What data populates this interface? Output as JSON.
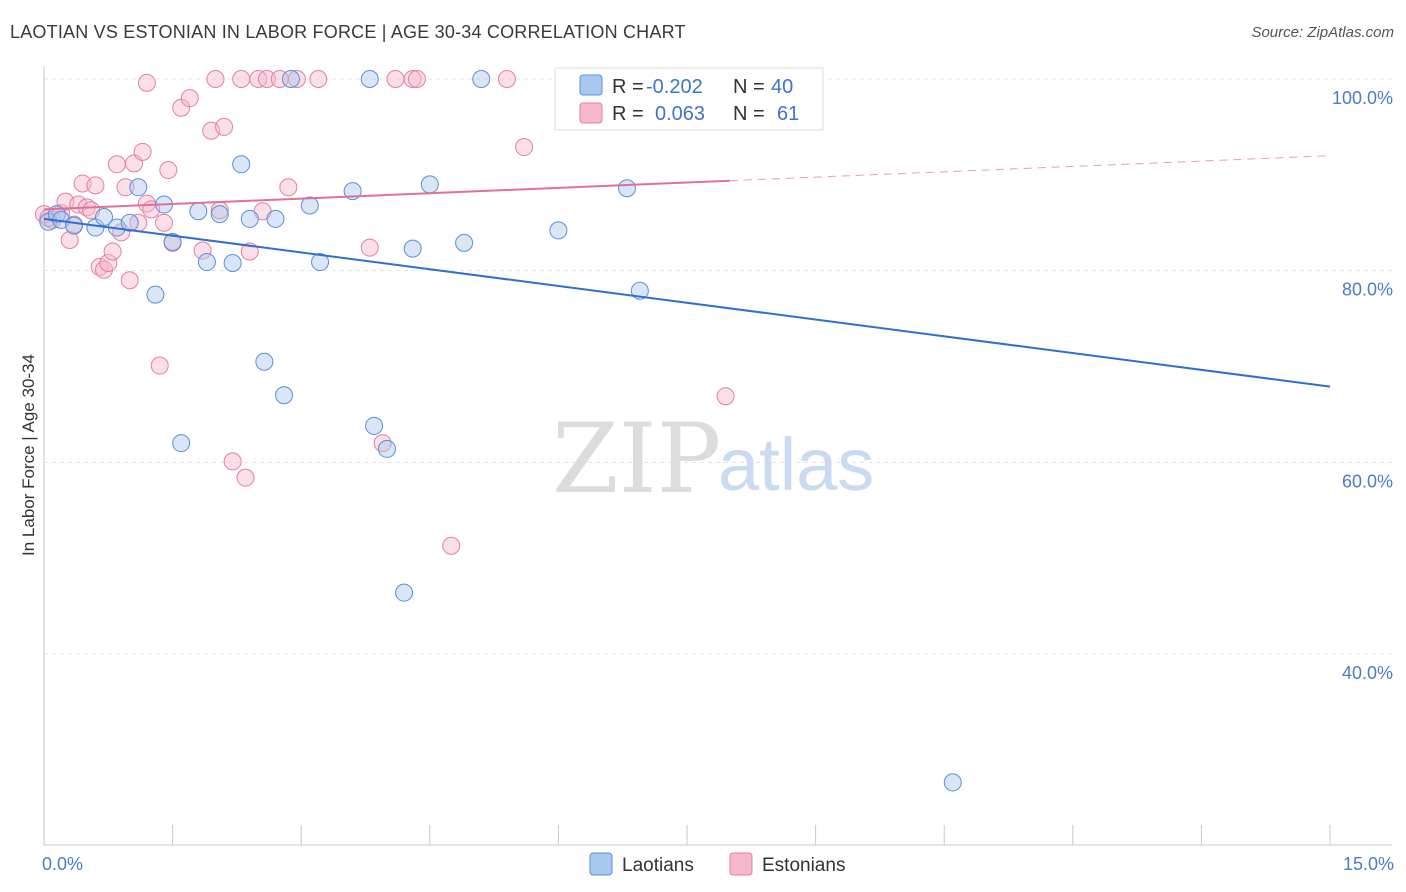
{
  "title": "LAOTIAN VS ESTONIAN IN LABOR FORCE | AGE 30-34 CORRELATION CHART",
  "source": "Source: ZipAtlas.com",
  "watermark": {
    "zip": "ZIP",
    "atlas": "atlas"
  },
  "colors": {
    "laotians_fill": "#a9c8f0",
    "laotians_stroke": "#5a8fd6",
    "laotians_line": "#2f6fd0",
    "estonians_fill": "#f6b8cc",
    "estonians_stroke": "#e47fa0",
    "estonians_line": "#e0709a",
    "tick_label": "#4a7cc8",
    "grid": "#e3e3e3"
  },
  "legend": {
    "rows": [
      {
        "r_label": "R =",
        "r_value": "-0.202",
        "n_label": "N =",
        "n_value": "40"
      },
      {
        "r_label": "R =",
        "r_value": "0.063",
        "n_label": "N =",
        "n_value": "61"
      }
    ]
  },
  "chart_data": {
    "type": "scatter",
    "title": "LAOTIAN VS ESTONIAN IN LABOR FORCE | AGE 30-34 CORRELATION CHART",
    "xlabel": "",
    "ylabel": "In Labor Force | Age 30-34",
    "xlim": [
      0,
      15
    ],
    "ylim": [
      20,
      103
    ],
    "x_tick_labels": [
      "0.0%",
      "15.0%"
    ],
    "y_ticks": [
      40,
      60,
      80,
      100
    ],
    "y_tick_labels": [
      "40.0%",
      "60.0%",
      "80.0%",
      "100.0%"
    ],
    "grid": true,
    "legend_placement": "top-center",
    "series": [
      {
        "name": "Laotians",
        "r": -0.202,
        "n": 40,
        "trend": {
          "x": [
            0,
            15
          ],
          "y": [
            85.4,
            67.9
          ],
          "dashed_from": null
        },
        "points": [
          [
            0.05,
            85.1
          ],
          [
            0.15,
            85.9
          ],
          [
            0.2,
            85.3
          ],
          [
            0.35,
            84.7
          ],
          [
            0.6,
            84.5
          ],
          [
            0.7,
            85.6
          ],
          [
            0.85,
            84.5
          ],
          [
            1.0,
            85.0
          ],
          [
            1.1,
            88.7
          ],
          [
            1.3,
            77.5
          ],
          [
            1.4,
            86.9
          ],
          [
            1.5,
            83.0
          ],
          [
            1.6,
            62.0
          ],
          [
            1.8,
            86.2
          ],
          [
            1.9,
            80.9
          ],
          [
            2.05,
            85.9
          ],
          [
            2.2,
            80.8
          ],
          [
            2.3,
            91.1
          ],
          [
            2.4,
            85.4
          ],
          [
            2.57,
            70.5
          ],
          [
            2.7,
            85.4
          ],
          [
            2.8,
            67.0
          ],
          [
            2.88,
            100.0
          ],
          [
            3.1,
            86.8
          ],
          [
            3.22,
            80.9
          ],
          [
            3.6,
            88.3
          ],
          [
            3.8,
            100.0
          ],
          [
            3.85,
            63.8
          ],
          [
            4.0,
            61.4
          ],
          [
            4.2,
            46.4
          ],
          [
            4.3,
            82.3
          ],
          [
            4.5,
            89.0
          ],
          [
            4.9,
            82.9
          ],
          [
            5.1,
            100.0
          ],
          [
            6.0,
            84.2
          ],
          [
            6.8,
            88.6
          ],
          [
            6.95,
            77.9
          ],
          [
            8.3,
            100.0
          ],
          [
            8.7,
            96.7
          ],
          [
            10.6,
            26.6
          ]
        ]
      },
      {
        "name": "Estonians",
        "r": 0.063,
        "n": 61,
        "trend": {
          "x": [
            0,
            15
          ],
          "y": [
            86.4,
            92.0
          ],
          "dashed_from": 8.0
        },
        "points": [
          [
            0.0,
            85.9
          ],
          [
            0.05,
            85.5
          ],
          [
            0.1,
            85.3
          ],
          [
            0.2,
            86.0
          ],
          [
            0.25,
            87.2
          ],
          [
            0.3,
            83.2
          ],
          [
            0.35,
            84.8
          ],
          [
            0.4,
            86.9
          ],
          [
            0.45,
            89.1
          ],
          [
            0.5,
            86.6
          ],
          [
            0.55,
            86.3
          ],
          [
            0.6,
            88.9
          ],
          [
            0.65,
            80.4
          ],
          [
            0.7,
            80.1
          ],
          [
            0.75,
            80.8
          ],
          [
            0.8,
            82.0
          ],
          [
            0.85,
            91.1
          ],
          [
            0.9,
            84.0
          ],
          [
            0.95,
            88.7
          ],
          [
            1.0,
            79.0
          ],
          [
            1.05,
            91.2
          ],
          [
            1.1,
            85.0
          ],
          [
            1.15,
            92.4
          ],
          [
            1.2,
            87.0
          ],
          [
            1.25,
            86.4
          ],
          [
            1.2,
            99.6
          ],
          [
            1.35,
            70.1
          ],
          [
            1.4,
            85.0
          ],
          [
            1.45,
            90.5
          ],
          [
            1.5,
            82.9
          ],
          [
            1.6,
            97.0
          ],
          [
            1.7,
            98.0
          ],
          [
            1.85,
            82.1
          ],
          [
            1.95,
            94.6
          ],
          [
            2.0,
            100.0
          ],
          [
            2.05,
            86.3
          ],
          [
            2.1,
            95.0
          ],
          [
            2.2,
            60.1
          ],
          [
            2.3,
            100.0
          ],
          [
            2.35,
            58.4
          ],
          [
            2.4,
            82.0
          ],
          [
            2.5,
            100.0
          ],
          [
            2.55,
            86.2
          ],
          [
            2.6,
            100.0
          ],
          [
            2.75,
            100.0
          ],
          [
            2.85,
            88.7
          ],
          [
            2.95,
            100.0
          ],
          [
            3.2,
            100.0
          ],
          [
            3.8,
            82.4
          ],
          [
            3.95,
            62.0
          ],
          [
            4.1,
            100.0
          ],
          [
            4.3,
            100.0
          ],
          [
            4.35,
            100.0
          ],
          [
            4.75,
            51.3
          ],
          [
            5.4,
            100.0
          ],
          [
            5.6,
            92.9
          ],
          [
            6.3,
            100.0
          ],
          [
            6.8,
            100.0
          ],
          [
            7.1,
            100.0
          ],
          [
            7.7,
            100.0
          ],
          [
            7.95,
            66.9
          ]
        ]
      }
    ]
  },
  "bottom_legend": [
    {
      "label": "Laotians"
    },
    {
      "label": "Estonians"
    }
  ]
}
